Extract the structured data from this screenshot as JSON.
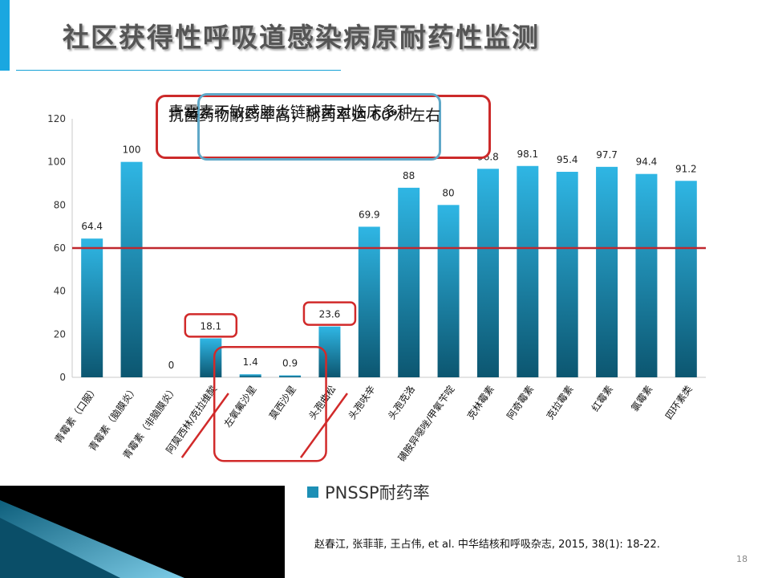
{
  "slide": {
    "title": "社区获得性呼吸道感染病原耐药性监测",
    "page_number": "18",
    "citation": "赵春江, 张菲菲, 王占伟, et al. 中华结核和呼吸杂志, 2015, 38(1): 18-22.",
    "callout_lines": [
      "青霉素不敏感肺炎链球菌对临床多种",
      "抗菌药物耐药率高，耐药率达 60% 左右"
    ]
  },
  "colors": {
    "accent": "#1aa7e0",
    "bar_top": "#2fb6e4",
    "bar_bottom": "#0c5670",
    "threshold": "#c0272d",
    "highlight": "#d12a2a"
  },
  "chart_data": {
    "type": "bar",
    "categories": [
      "青霉素（口服）",
      "青霉素（脑膜炎）",
      "青霉素（非脑膜炎）",
      "阿莫西林/克拉维酸",
      "左氧氟沙星",
      "莫西沙星",
      "头孢曲松",
      "头孢呋辛",
      "头孢克洛",
      "磺胺异噁唑/甲氧苄啶",
      "克林霉素",
      "阿奇霉素",
      "克拉霉素",
      "红霉素",
      "氯霉素",
      "四环素类"
    ],
    "series": [
      {
        "name": "PNSSP耐药率",
        "values": [
          64.4,
          100,
          0,
          18.1,
          1.4,
          0.9,
          23.6,
          69.9,
          88,
          80,
          96.8,
          98.1,
          95.4,
          97.7,
          94.4,
          91.2
        ]
      }
    ],
    "value_labels": [
      "64.4",
      "100",
      "0",
      "18.1",
      "1.4",
      "0.9",
      "23.6",
      "69.9",
      "88",
      "80",
      "96.8",
      "98.1",
      "95.4",
      "97.7",
      "94.4",
      "91.2"
    ],
    "ylim": [
      0,
      120
    ],
    "yticks": [
      "0",
      "20",
      "40",
      "60",
      "80",
      "100",
      "120"
    ],
    "reference_line": 60,
    "highlighted_categories": [
      "阿莫西林/克拉维酸",
      "左氧氟沙星",
      "莫西沙星",
      "头孢曲松"
    ],
    "legend_position": "bottom-right",
    "grid": false
  }
}
